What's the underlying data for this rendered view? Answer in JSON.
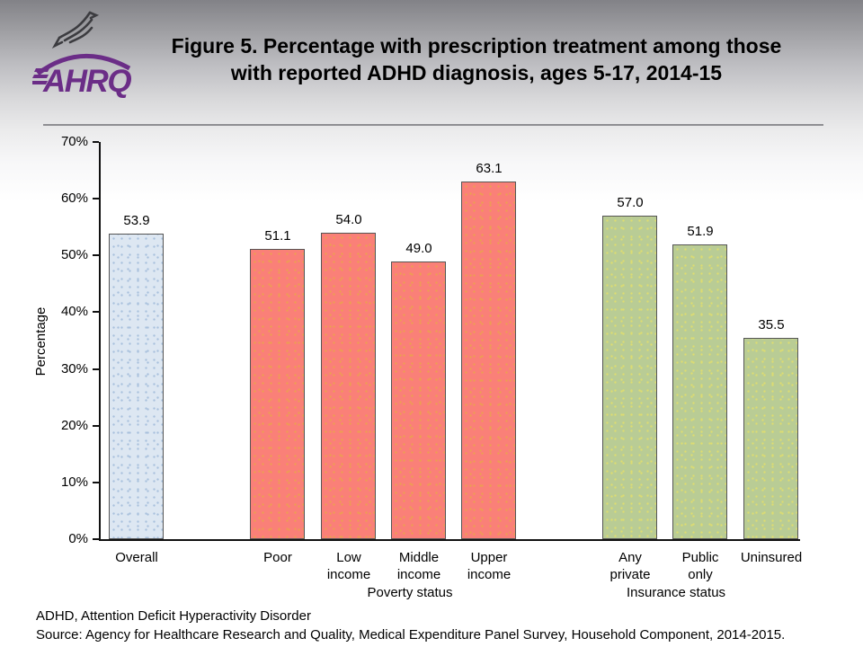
{
  "slide": {
    "logo_org": "AHRQ",
    "title_line1": "Figure 5. Percentage with prescription treatment among those",
    "title_line2": "with reported ADHD diagnosis, ages 5-17, 2014-15",
    "footnote_line1": "ADHD, Attention Deficit Hyperactivity Disorder",
    "footnote_line2": "Source: Agency for Healthcare Research and Quality, Medical Expenditure Panel Survey, Household Component, 2014-2015."
  },
  "chart_data": {
    "type": "bar",
    "title": "Percentage with prescription treatment among those with reported ADHD diagnosis, ages 5-17, 2014-15",
    "xlabel": "",
    "ylabel": "Percentage",
    "ylim": [
      0,
      70
    ],
    "ytick_labels": [
      "0%",
      "10%",
      "20%",
      "30%",
      "40%",
      "50%",
      "60%",
      "70%"
    ],
    "grid": false,
    "legend": "none",
    "groups": [
      {
        "label": "",
        "fill_color": "#dde7f2",
        "dot_color": "#a9c1dd",
        "bars": [
          {
            "category": "Overall",
            "value": 53.9,
            "value_label": "53.9"
          }
        ]
      },
      {
        "label": "Poverty status",
        "fill_color": "#fa8078",
        "dot_color": "#ec9e52",
        "bars": [
          {
            "category": "Poor",
            "value": 51.1,
            "value_label": "51.1"
          },
          {
            "category": "Low income",
            "value": 54.0,
            "value_label": "54.0"
          },
          {
            "category": "Middle income",
            "value": 49.0,
            "value_label": "49.0"
          },
          {
            "category": "Upper income",
            "value": 63.1,
            "value_label": "63.1"
          }
        ]
      },
      {
        "label": "Insurance status",
        "fill_color": "#b9cc95",
        "dot_color": "#dcdc72",
        "bars": [
          {
            "category": "Any private",
            "value": 57.0,
            "value_label": "57.0"
          },
          {
            "category": "Public only",
            "value": 51.9,
            "value_label": "51.9"
          },
          {
            "category": "Uninsured",
            "value": 35.5,
            "value_label": "35.5"
          }
        ]
      }
    ]
  }
}
